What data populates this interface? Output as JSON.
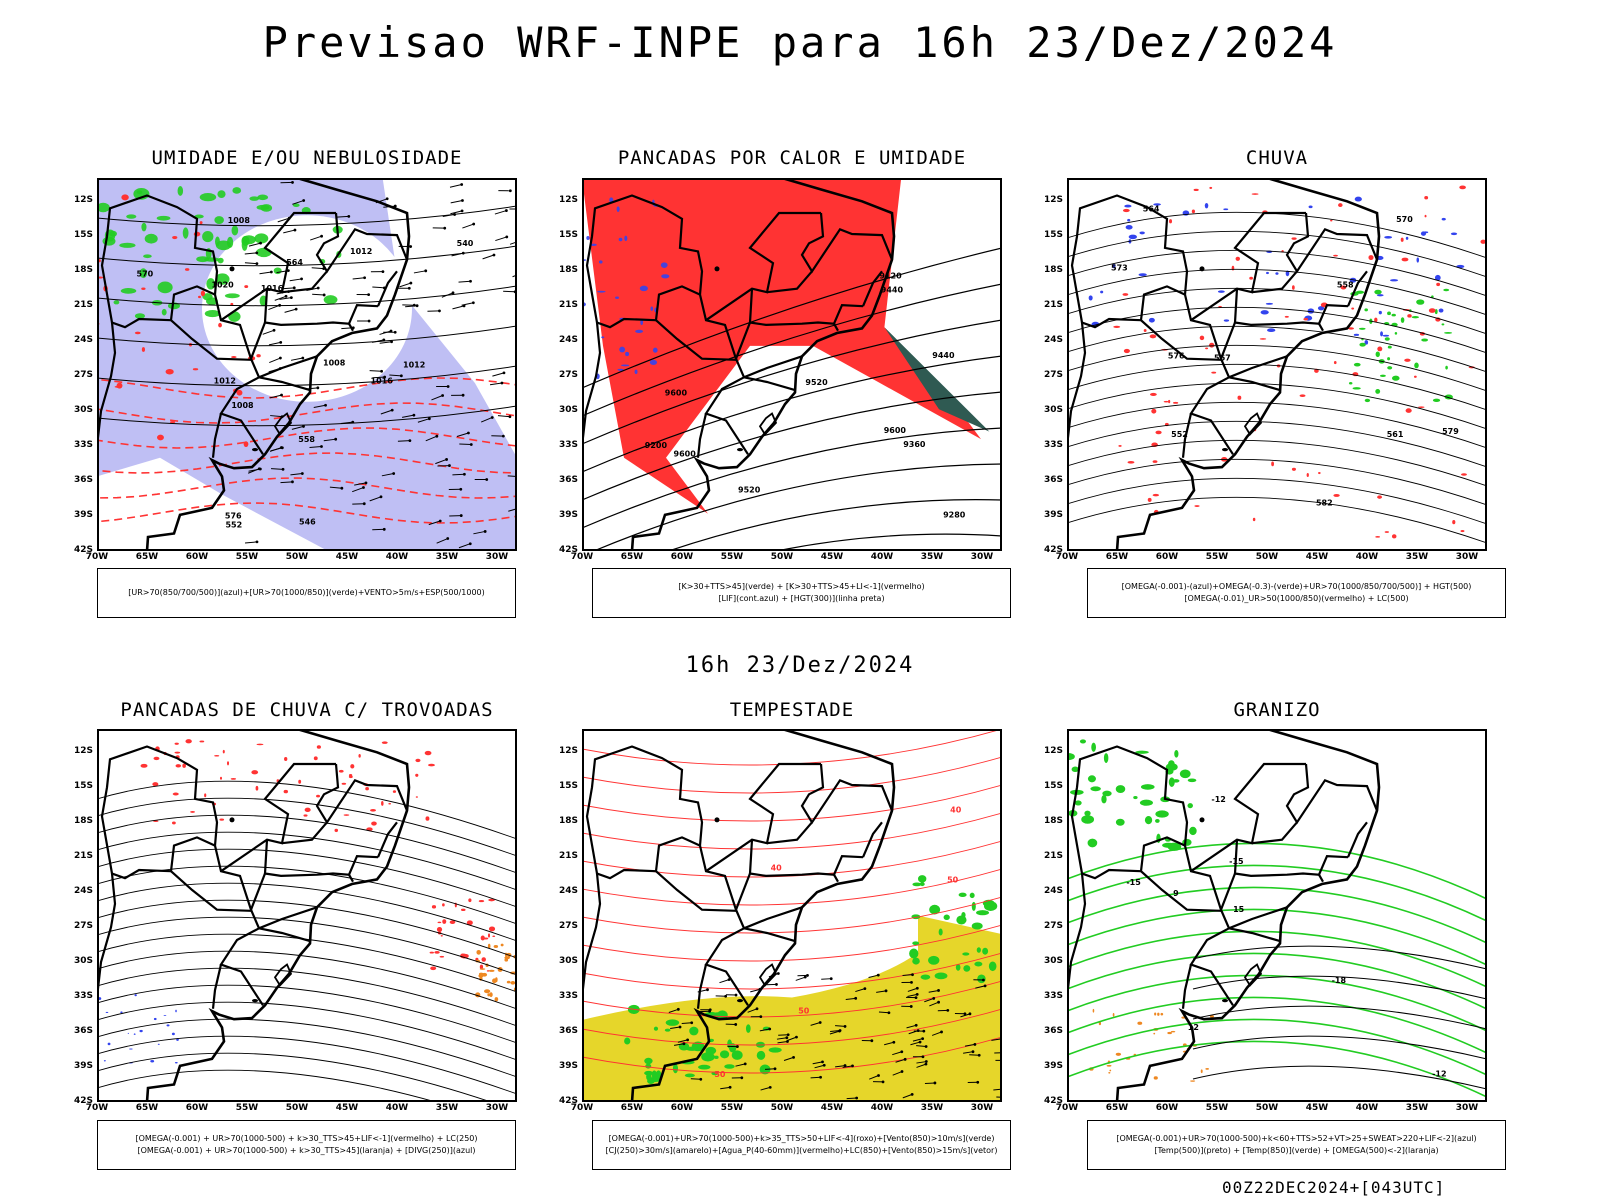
{
  "header": {
    "title": "Previsao WRF-INPE  para 16h 23/Dez/2024"
  },
  "middle_date": "16h 23/Dez/2024",
  "footer": "00Z22DEC2024+[043UTC]",
  "lat_labels": [
    "12S",
    "15S",
    "18S",
    "21S",
    "24S",
    "27S",
    "30S",
    "33S",
    "36S",
    "39S",
    "42S"
  ],
  "lon_labels": [
    "70W",
    "65W",
    "60W",
    "55W",
    "50W",
    "45W",
    "40W",
    "35W",
    "30W"
  ],
  "panels": [
    {
      "title": "UMIDADE E/OU NEBULOSIDADE",
      "legend": [
        "[UR>70(850/700/500)](azul)+[UR>70(1000/850)](verde)+VENTO>5m/s+ESP(500/1000)"
      ]
    },
    {
      "title": "PANCADAS POR CALOR E UMIDADE",
      "legend": [
        "[K>30+TTS>45](verde) + [K>30+TTS>45+LI<-1](vermelho)",
        "[LIF](cont.azul) + [HGT(300)](linha preta)"
      ]
    },
    {
      "title": "CHUVA",
      "legend": [
        "[OMEGA(-0.001)-(azul)+OMEGA(-0.3)-(verde)+UR>70(1000/850/700/500)] + HGT(500)",
        "[OMEGA(-0.01)_UR>50(1000/850)(vermelho) + LC(500)"
      ]
    },
    {
      "title": "PANCADAS DE CHUVA C/ TROVOADAS",
      "legend": [
        "[OMEGA(-0.001) + UR>70(1000-500) + k>30_TTS>45+LIF<-1](vermelho) + LC(250)",
        "[OMEGA(-0.001) + UR>70(1000-500) + k>30_TTS>45](laranja) + [DIVG(250)](azul)"
      ]
    },
    {
      "title": "TEMPESTADE",
      "legend": [
        "[OMEGA(-0.001)+UR>70(1000-500)+k>35_TTS>50+LIF<-4](roxo)+[Vento(850)>10m/s](verde)",
        "[CJ(250)>30m/s](amarelo)+[Agua_P(40-60mm)](vermelho)+LC(850)+[Vento(850)>15m/s](vetor)"
      ]
    },
    {
      "title": "GRANIZO",
      "legend": [
        "[OMEGA(-0.001)+UR>70(1000-500)+k<60+TTS>52+VT>25+SWEAT>220+LIF<-2](azul)",
        "[Temp(500)](preto) + [Temp(850)](verde) + [OMEGA(500)<-2](laranja)"
      ]
    }
  ],
  "contour_labels": {
    "p1": [
      "1008",
      "1008",
      "1008",
      "1012",
      "1012",
      "1016",
      "1020",
      "1016",
      "1012",
      "570",
      "576",
      "564",
      "558",
      "552",
      "546",
      "540"
    ],
    "p2": [
      "9600",
      "9600",
      "9520",
      "9440",
      "9360",
      "9280",
      "9200",
      "9120",
      "9600",
      "9520",
      "9440"
    ],
    "p3": [
      "582",
      "579",
      "576",
      "573",
      "570",
      "567",
      "564",
      "561",
      "558",
      "552"
    ],
    "p5": [
      "50",
      "40",
      "50",
      "50",
      "40"
    ],
    "p6": [
      "-12",
      "-15",
      "-15",
      "-18",
      "-12",
      "15",
      "12",
      "9"
    ]
  },
  "colors": {
    "blue_shade": "#a9a9f0",
    "green": "#22cc22",
    "red": "#ff3333",
    "orange": "#ee8822",
    "yellow": "#e6d62a",
    "dark_teal": "#2f5a52",
    "blue_line": "#3344ee"
  }
}
